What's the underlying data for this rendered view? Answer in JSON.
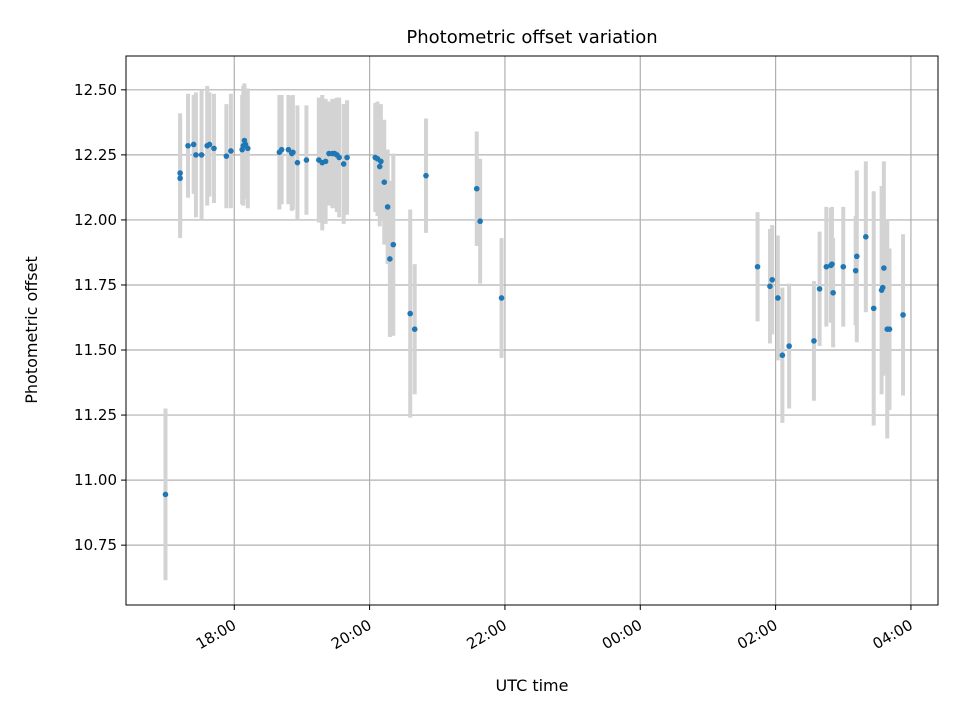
{
  "chart_data": {
    "type": "scatter",
    "title": "Photometric offset variation",
    "xlabel": "UTC time",
    "ylabel": "Photometric offset",
    "x_axis_kind": "time",
    "xlim": [
      "16:24",
      "28:24"
    ],
    "ylim": [
      10.52,
      12.63
    ],
    "x_ticks": [
      "18:00",
      "20:00",
      "22:00",
      "00:00",
      "02:00",
      "04:00"
    ],
    "x_tick_values": [
      "18:00",
      "20:00",
      "22:00",
      "24:00",
      "26:00",
      "28:00"
    ],
    "y_ticks": [
      10.75,
      11.0,
      11.25,
      11.5,
      11.75,
      12.0,
      12.25,
      12.5
    ],
    "y_tick_labels": [
      "10.75",
      "11.00",
      "11.25",
      "11.50",
      "11.75",
      "12.00",
      "12.25",
      "12.50"
    ],
    "grid": true,
    "legend": "none",
    "colors": {
      "point": "#1f77b4",
      "errorbar": "#d3d3d3",
      "grid": "#b0b0b0"
    },
    "series": [
      {
        "x": [
          "16:59",
          "17:12",
          "17:12",
          "17:19",
          "17:24",
          "17:26",
          "17:31",
          "17:36",
          "17:38",
          "17:42",
          "17:53",
          "17:57",
          "18:07",
          "18:08",
          "18:09",
          "18:10",
          "18:12",
          "18:40",
          "18:42",
          "18:48",
          "18:51",
          "18:52",
          "18:56",
          "19:04",
          "19:15",
          "19:18",
          "19:21",
          "19:24",
          "19:27",
          "19:29",
          "19:31",
          "19:33",
          "19:37",
          "19:40",
          "20:05",
          "20:07",
          "20:09",
          "20:10",
          "20:13",
          "20:16",
          "20:18",
          "20:21",
          "20:36",
          "20:40",
          "20:50",
          "21:35",
          "21:38",
          "21:57",
          "25:44",
          "25:55",
          "25:57",
          "26:02",
          "26:06",
          "26:12",
          "26:34",
          "26:39",
          "26:45",
          "26:49",
          "26:50",
          "26:51",
          "27:00",
          "27:11",
          "27:12",
          "27:20",
          "27:27",
          "27:34",
          "27:35",
          "27:36",
          "27:39",
          "27:41",
          "27:53"
        ],
        "y": [
          10.945,
          12.16,
          12.18,
          12.285,
          12.29,
          12.25,
          12.25,
          12.285,
          12.29,
          12.275,
          12.245,
          12.265,
          12.27,
          12.285,
          12.305,
          12.29,
          12.275,
          12.26,
          12.27,
          12.27,
          12.255,
          12.26,
          12.22,
          12.23,
          12.23,
          12.22,
          12.225,
          12.255,
          12.255,
          12.255,
          12.25,
          12.24,
          12.215,
          12.24,
          12.24,
          12.235,
          12.205,
          12.225,
          12.145,
          12.05,
          11.85,
          11.905,
          11.64,
          11.58,
          12.17,
          12.12,
          11.995,
          11.7,
          11.82,
          11.745,
          11.77,
          11.7,
          11.48,
          11.515,
          11.535,
          11.735,
          11.82,
          11.825,
          11.83,
          11.72,
          11.82,
          11.805,
          11.86,
          11.935,
          11.66,
          11.73,
          11.74,
          11.815,
          11.58,
          11.58,
          11.635
        ],
        "yerr": [
          0.33,
          0.23,
          0.23,
          0.2,
          0.19,
          0.24,
          0.25,
          0.23,
          0.2,
          0.21,
          0.2,
          0.22,
          0.21,
          0.23,
          0.22,
          0.21,
          0.23,
          0.22,
          0.21,
          0.21,
          0.22,
          0.22,
          0.22,
          0.21,
          0.24,
          0.26,
          0.24,
          0.2,
          0.21,
          0.21,
          0.22,
          0.23,
          0.23,
          0.22,
          0.21,
          0.22,
          0.23,
          0.22,
          0.24,
          0.22,
          0.3,
          0.35,
          0.4,
          0.25,
          0.22,
          0.22,
          0.24,
          0.23,
          0.21,
          0.22,
          0.21,
          0.24,
          0.26,
          0.24,
          0.23,
          0.22,
          0.23,
          0.22,
          0.22,
          0.21,
          0.23,
          0.21,
          0.33,
          0.29,
          0.45,
          0.4,
          0.34,
          0.41,
          0.42,
          0.31,
          0.31
        ]
      }
    ]
  }
}
